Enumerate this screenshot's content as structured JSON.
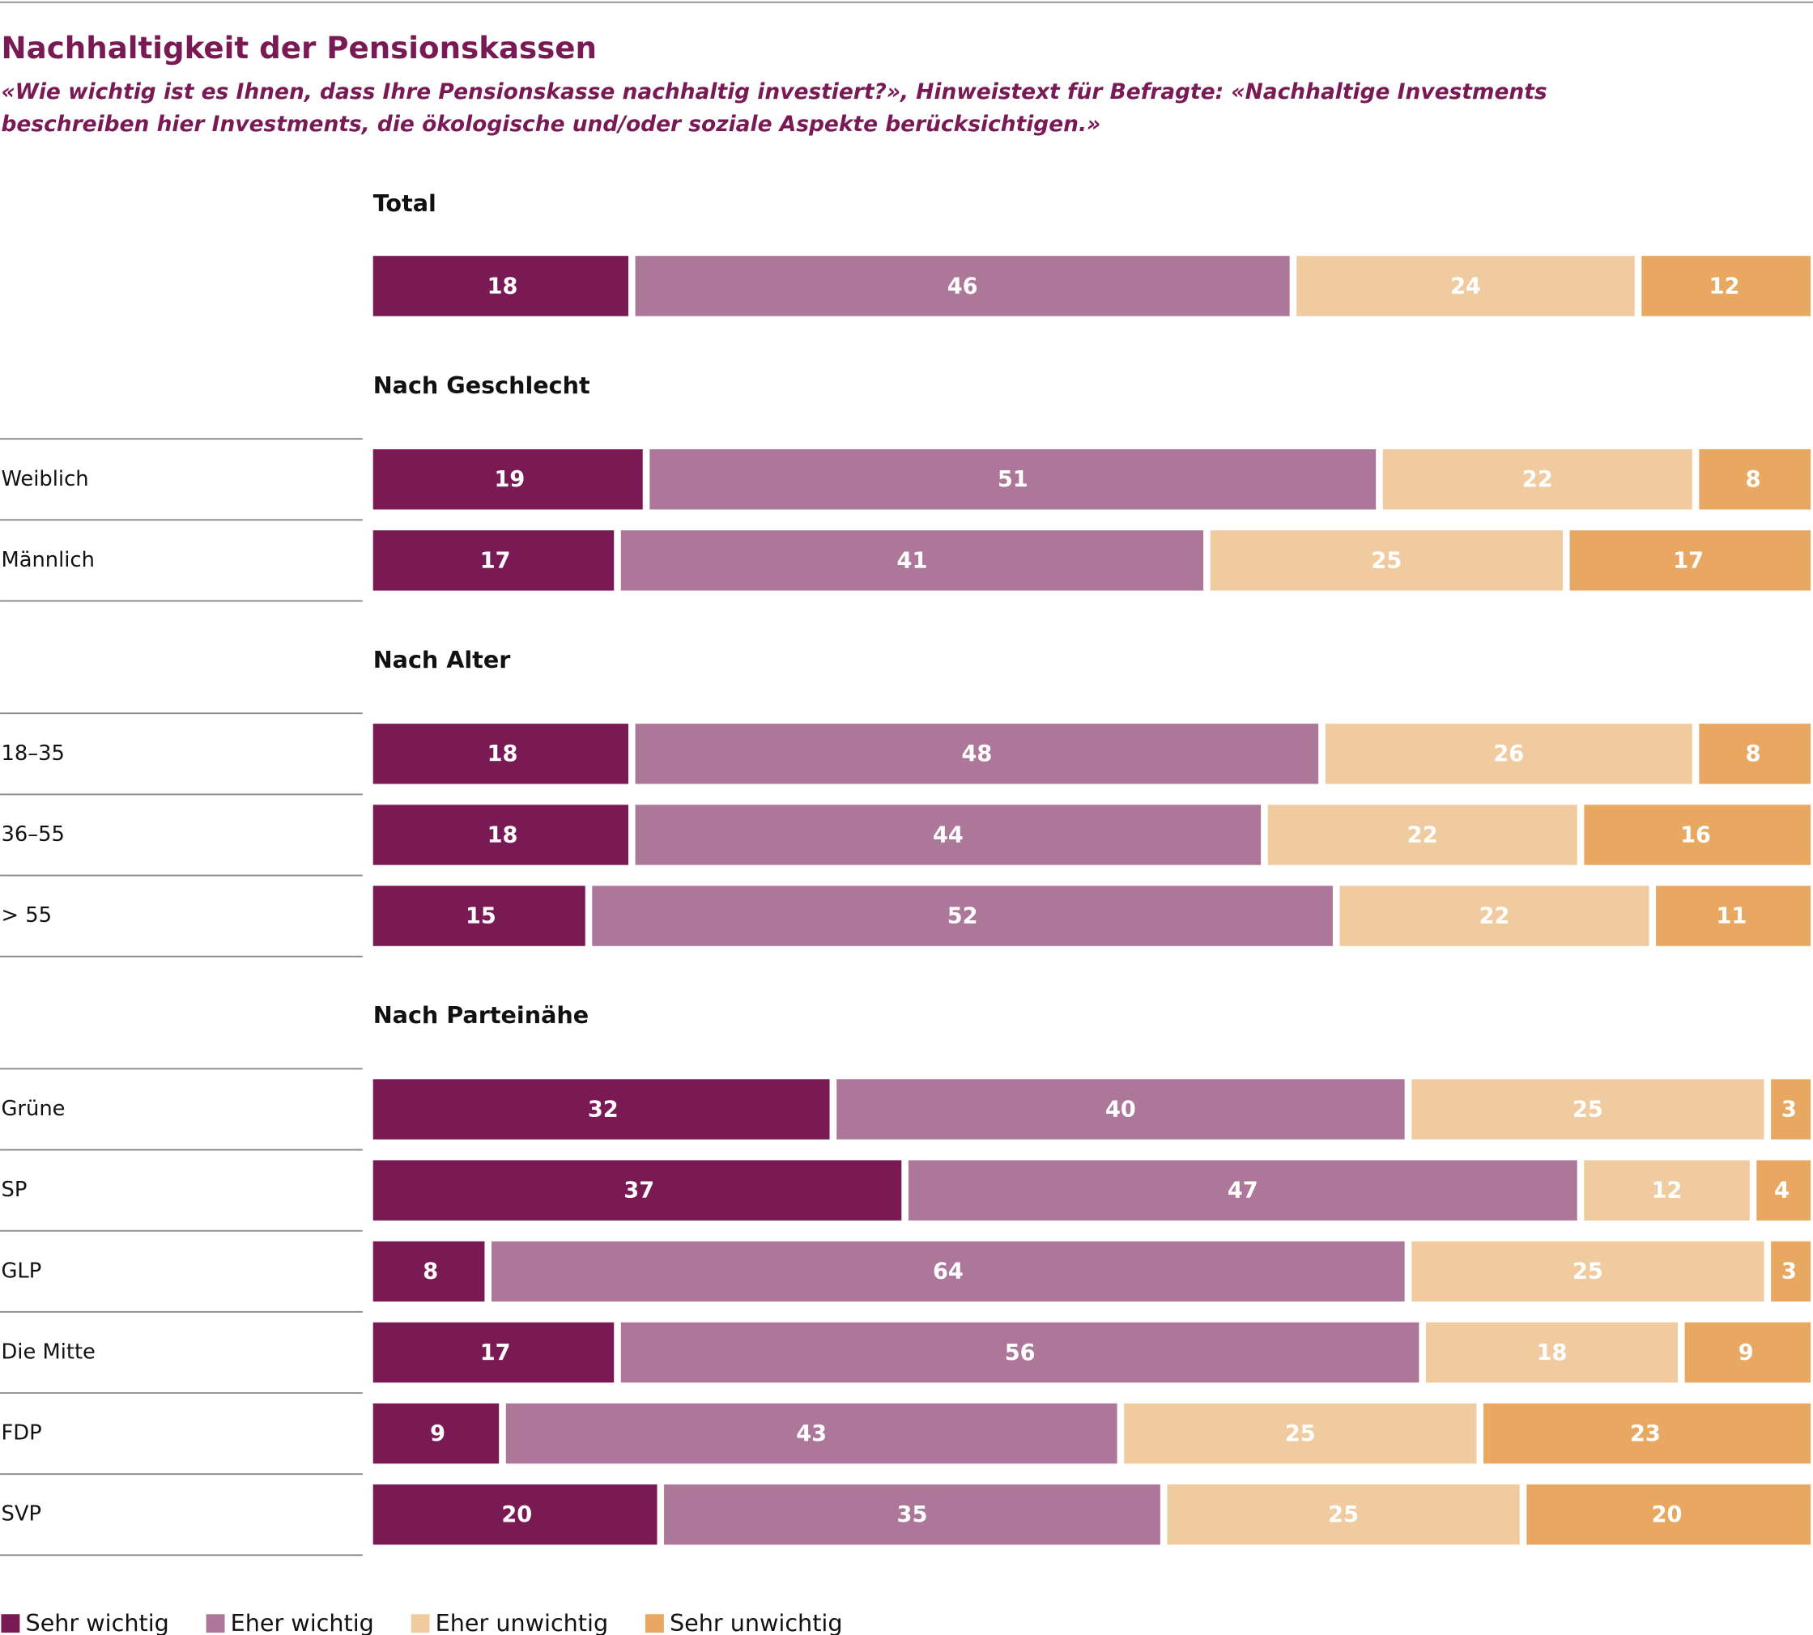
{
  "chart_data": {
    "type": "bar",
    "orientation": "horizontal",
    "stacked": true,
    "title": "Nachhaltigkeit der Pensionskassen",
    "subtitle": [
      "«Wie wichtig ist es Ihnen, dass Ihre Pensionskasse nachhaltig investiert?», Hinweistext für Befragte: «Nachhaltige Investments",
      "beschreiben hier Investments, die ökologische und/oder soziale Aspekte berücksichtigen.»"
    ],
    "xlim": [
      0,
      100
    ],
    "groups": [
      {
        "title": "Total",
        "categories": [
          null
        ]
      },
      {
        "title": "Nach Geschlecht",
        "categories": [
          "Weiblich",
          "Männlich"
        ]
      },
      {
        "title": "Nach Alter",
        "categories": [
          "18–35",
          "36–55",
          "> 55"
        ]
      },
      {
        "title": "Nach Parteinähe",
        "categories": [
          "Grüne",
          "SP",
          "GLP",
          "Die Mitte",
          "FDP",
          "SVP"
        ]
      }
    ],
    "series": [
      {
        "name": "Sehr wichtig",
        "color": "#7a1a55",
        "values": [
          18,
          19,
          17,
          18,
          18,
          15,
          32,
          37,
          8,
          17,
          9,
          20
        ]
      },
      {
        "name": "Eher wichtig",
        "color": "#ad7799",
        "values": [
          46,
          51,
          41,
          48,
          44,
          52,
          40,
          47,
          64,
          56,
          43,
          35
        ]
      },
      {
        "name": "Eher unwichtig",
        "color": "#f0cba0",
        "values": [
          24,
          22,
          25,
          26,
          22,
          22,
          25,
          12,
          25,
          18,
          25,
          25
        ]
      },
      {
        "name": "Sehr unwichtig",
        "color": "#e8a862",
        "values": [
          12,
          8,
          17,
          8,
          16,
          11,
          3,
          4,
          3,
          9,
          23,
          20
        ]
      }
    ]
  }
}
